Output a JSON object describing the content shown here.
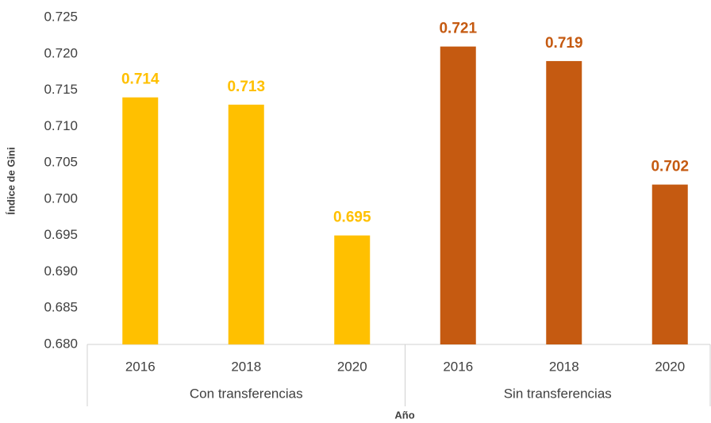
{
  "chart_data": {
    "type": "bar",
    "categories": [
      "2016",
      "2018",
      "2020",
      "2016",
      "2018",
      "2020"
    ],
    "group_labels": [
      "Con transferencias",
      "Sin transferencias"
    ],
    "values": [
      0.714,
      0.713,
      0.695,
      0.721,
      0.719,
      0.702
    ],
    "colors": [
      "#ffc000",
      "#ffc000",
      "#ffc000",
      "#c55a11",
      "#c55a11",
      "#c55a11"
    ],
    "ylim": [
      0.68,
      0.725
    ],
    "yticks": [
      {
        "value": 0.68,
        "label": "0.680"
      },
      0.685,
      {
        "value": 0.69,
        "label": "0.690"
      },
      0.695,
      {
        "value": 0.7,
        "label": "0.700"
      },
      0.705,
      {
        "value": 0.71,
        "label": "0.710"
      },
      0.715,
      {
        "value": 0.72,
        "label": "0.720"
      },
      0.725
    ],
    "y_label": "Índice de Gini",
    "x_label": "Año",
    "grid": false
  }
}
